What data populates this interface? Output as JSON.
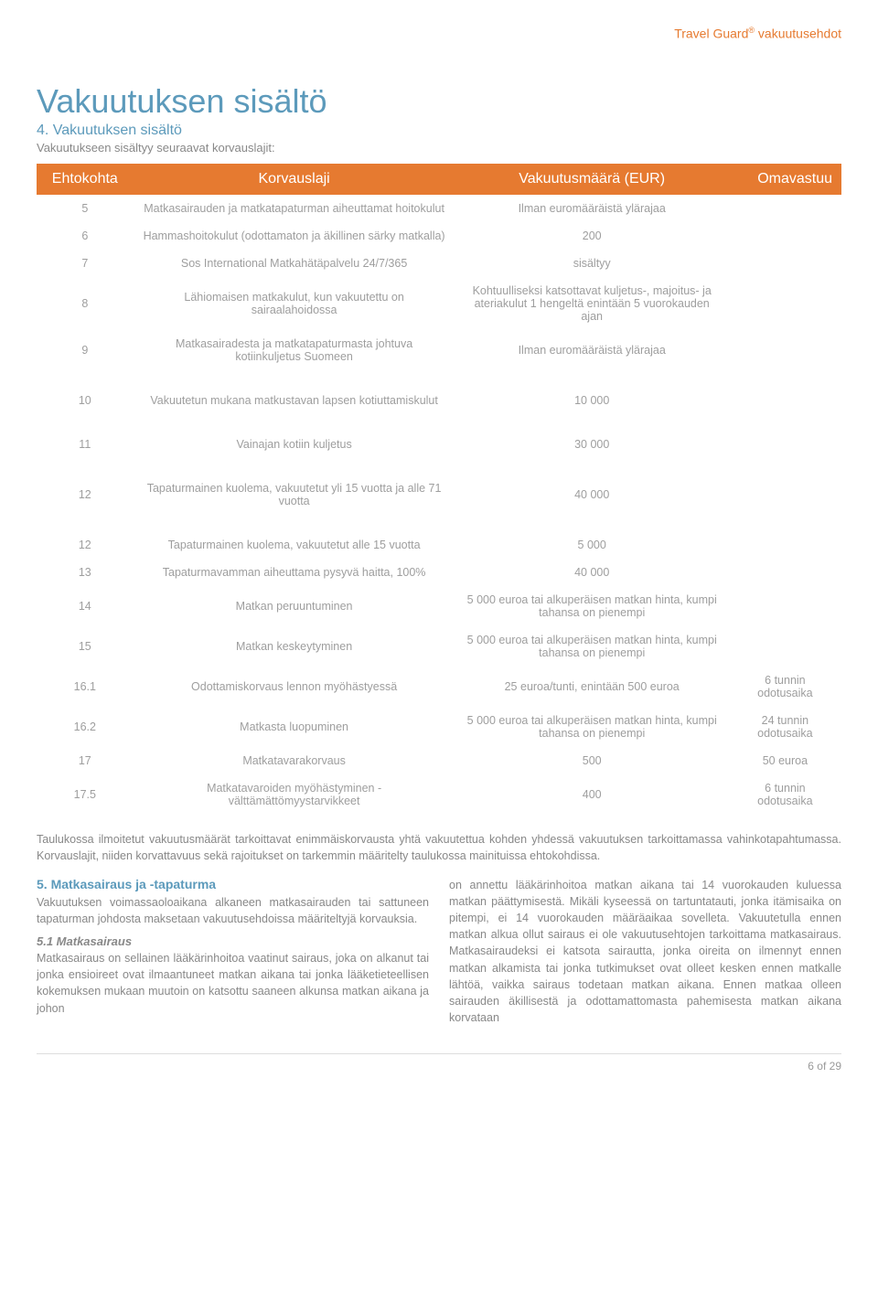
{
  "header": {
    "brand": "Travel Guard",
    "brand_sup": "®",
    "brand_suffix": " vakuutusehdot"
  },
  "title": "Vakuutuksen sisältö",
  "section4_title": "4. Vakuutuksen sisältö",
  "section4_desc": "Vakuutukseen sisältyy seuraavat korvauslajit:",
  "table": {
    "head": {
      "c1": "Ehtokohta",
      "c2": "Korvauslaji",
      "c3": "Vakuutusmäärä (EUR)",
      "c4": "Omavastuu"
    },
    "rows": [
      {
        "c1": "5",
        "c2": "Matkasairauden ja matkatapaturman aiheuttamat hoitokulut",
        "c3": "Ilman euromääräistä ylärajaa",
        "c4": ""
      },
      {
        "c1": "6",
        "c2": "Hammashoitokulut (odottamaton ja äkillinen särky matkalla)",
        "c3": "200",
        "c4": ""
      },
      {
        "c1": "7",
        "c2": "Sos International Matkahätäpalvelu 24/7/365",
        "c3": "sisältyy",
        "c4": ""
      },
      {
        "c1": "8",
        "c2": "Lähiomaisen matkakulut, kun vakuutettu on sairaalahoidossa",
        "c3": "Kohtuulliseksi katsottavat kuljetus-, majoitus- ja ateriakulut 1 hengeltä enintään 5 vuorokauden ajan",
        "c4": ""
      },
      {
        "c1": "9",
        "c2": "Matkasairadesta ja matkatapaturmasta johtuva kotiinkuljetus Suomeen",
        "c3": "Ilman euromääräistä ylärajaa",
        "c4": ""
      },
      {
        "spacer": true
      },
      {
        "c1": "10",
        "c2": "Vakuutetun mukana matkustavan lapsen kotiuttamiskulut",
        "c3": "10 000",
        "c4": ""
      },
      {
        "spacer": true
      },
      {
        "c1": "11",
        "c2": "Vainajan kotiin kuljetus",
        "c3": "30 000",
        "c4": ""
      },
      {
        "spacer": true
      },
      {
        "c1": "12",
        "c2": "Tapaturmainen kuolema, vakuutetut yli 15 vuotta ja alle 71 vuotta",
        "c3": "40 000",
        "c4": ""
      },
      {
        "spacer": true
      },
      {
        "c1": "12",
        "c2": "Tapaturmainen kuolema, vakuutetut alle 15 vuotta",
        "c3": "5 000",
        "c4": ""
      },
      {
        "c1": "13",
        "c2": "Tapaturmavamman aiheuttama pysyvä haitta, 100%",
        "c3": "40 000",
        "c4": ""
      },
      {
        "c1": "14",
        "c2": "Matkan peruuntuminen",
        "c3": "5 000 euroa tai alkuperäisen matkan hinta, kumpi tahansa on pienempi",
        "c4": ""
      },
      {
        "c1": "15",
        "c2": "Matkan keskeytyminen",
        "c3": "5 000 euroa tai alkuperäisen matkan hinta, kumpi tahansa on pienempi",
        "c4": ""
      },
      {
        "c1": "16.1",
        "c2": "Odottamiskorvaus lennon myöhästyessä",
        "c3": "25 euroa/tunti, enintään 500 euroa",
        "c4": "6 tunnin odotusaika"
      },
      {
        "c1": "16.2",
        "c2": "Matkasta luopuminen",
        "c3": "5 000 euroa tai alkuperäisen matkan hinta, kumpi tahansa on pienempi",
        "c4": "24 tunnin odotusaika"
      },
      {
        "c1": "17",
        "c2": "Matkatavarakorvaus",
        "c3": "500",
        "c4": "50 euroa"
      },
      {
        "c1": "17.5",
        "c2": "Matkatavaroiden myöhästyminen - välttämättömyystarvikkeet",
        "c3": "400",
        "c4": "6 tunnin odotusaika"
      }
    ]
  },
  "note": "Taulukossa ilmoitetut vakuutusmäärät tarkoittavat enimmäiskorvausta yhtä vakuutettua kohden yhdessä vakuutuksen tarkoittamassa vahinkotapahtumassa. Korvauslajit, niiden korvattavuus sekä rajoitukset on tarkemmin määritelty taulukossa mainituissa ehtokohdissa.",
  "section5": {
    "title": "5. Matkasairaus ja -tapaturma",
    "p1": "Vakuutuksen voimassaoloaikana alkaneen matkasairauden tai sattuneen tapaturman johdosta maksetaan vakuutusehdoissa määriteltyjä korvauksia.",
    "sub1_title": "5.1 Matkasairaus",
    "sub1_text": "Matkasairaus on sellainen lääkärinhoitoa vaatinut sairaus, joka on alkanut tai jonka ensioireet ovat ilmaantuneet matkan aikana tai jonka lääketieteellisen kokemuksen mukaan muutoin on katsottu saaneen alkunsa matkan aikana ja johon",
    "right_text": "on annettu lääkärinhoitoa matkan aikana tai 14 vuorokauden kuluessa matkan päättymisestä. Mikäli kyseessä on tartuntatauti, jonka itämisaika on pitempi, ei 14 vuorokauden määräaikaa sovelleta. Vakuutetulla ennen matkan alkua ollut sairaus ei ole vakuutusehtojen tarkoittama matkasairaus. Matkasairaudeksi ei katsota sairautta, jonka oireita on ilmennyt ennen matkan alkamista tai jonka tutkimukset ovat olleet kesken ennen matkalle lähtöä, vaikka sairaus todetaan matkan aikana. Ennen matkaa olleen sairauden äkillisestä ja odottamattomasta pahemisesta matkan aikana korvataan"
  },
  "footer": "6 of 29"
}
